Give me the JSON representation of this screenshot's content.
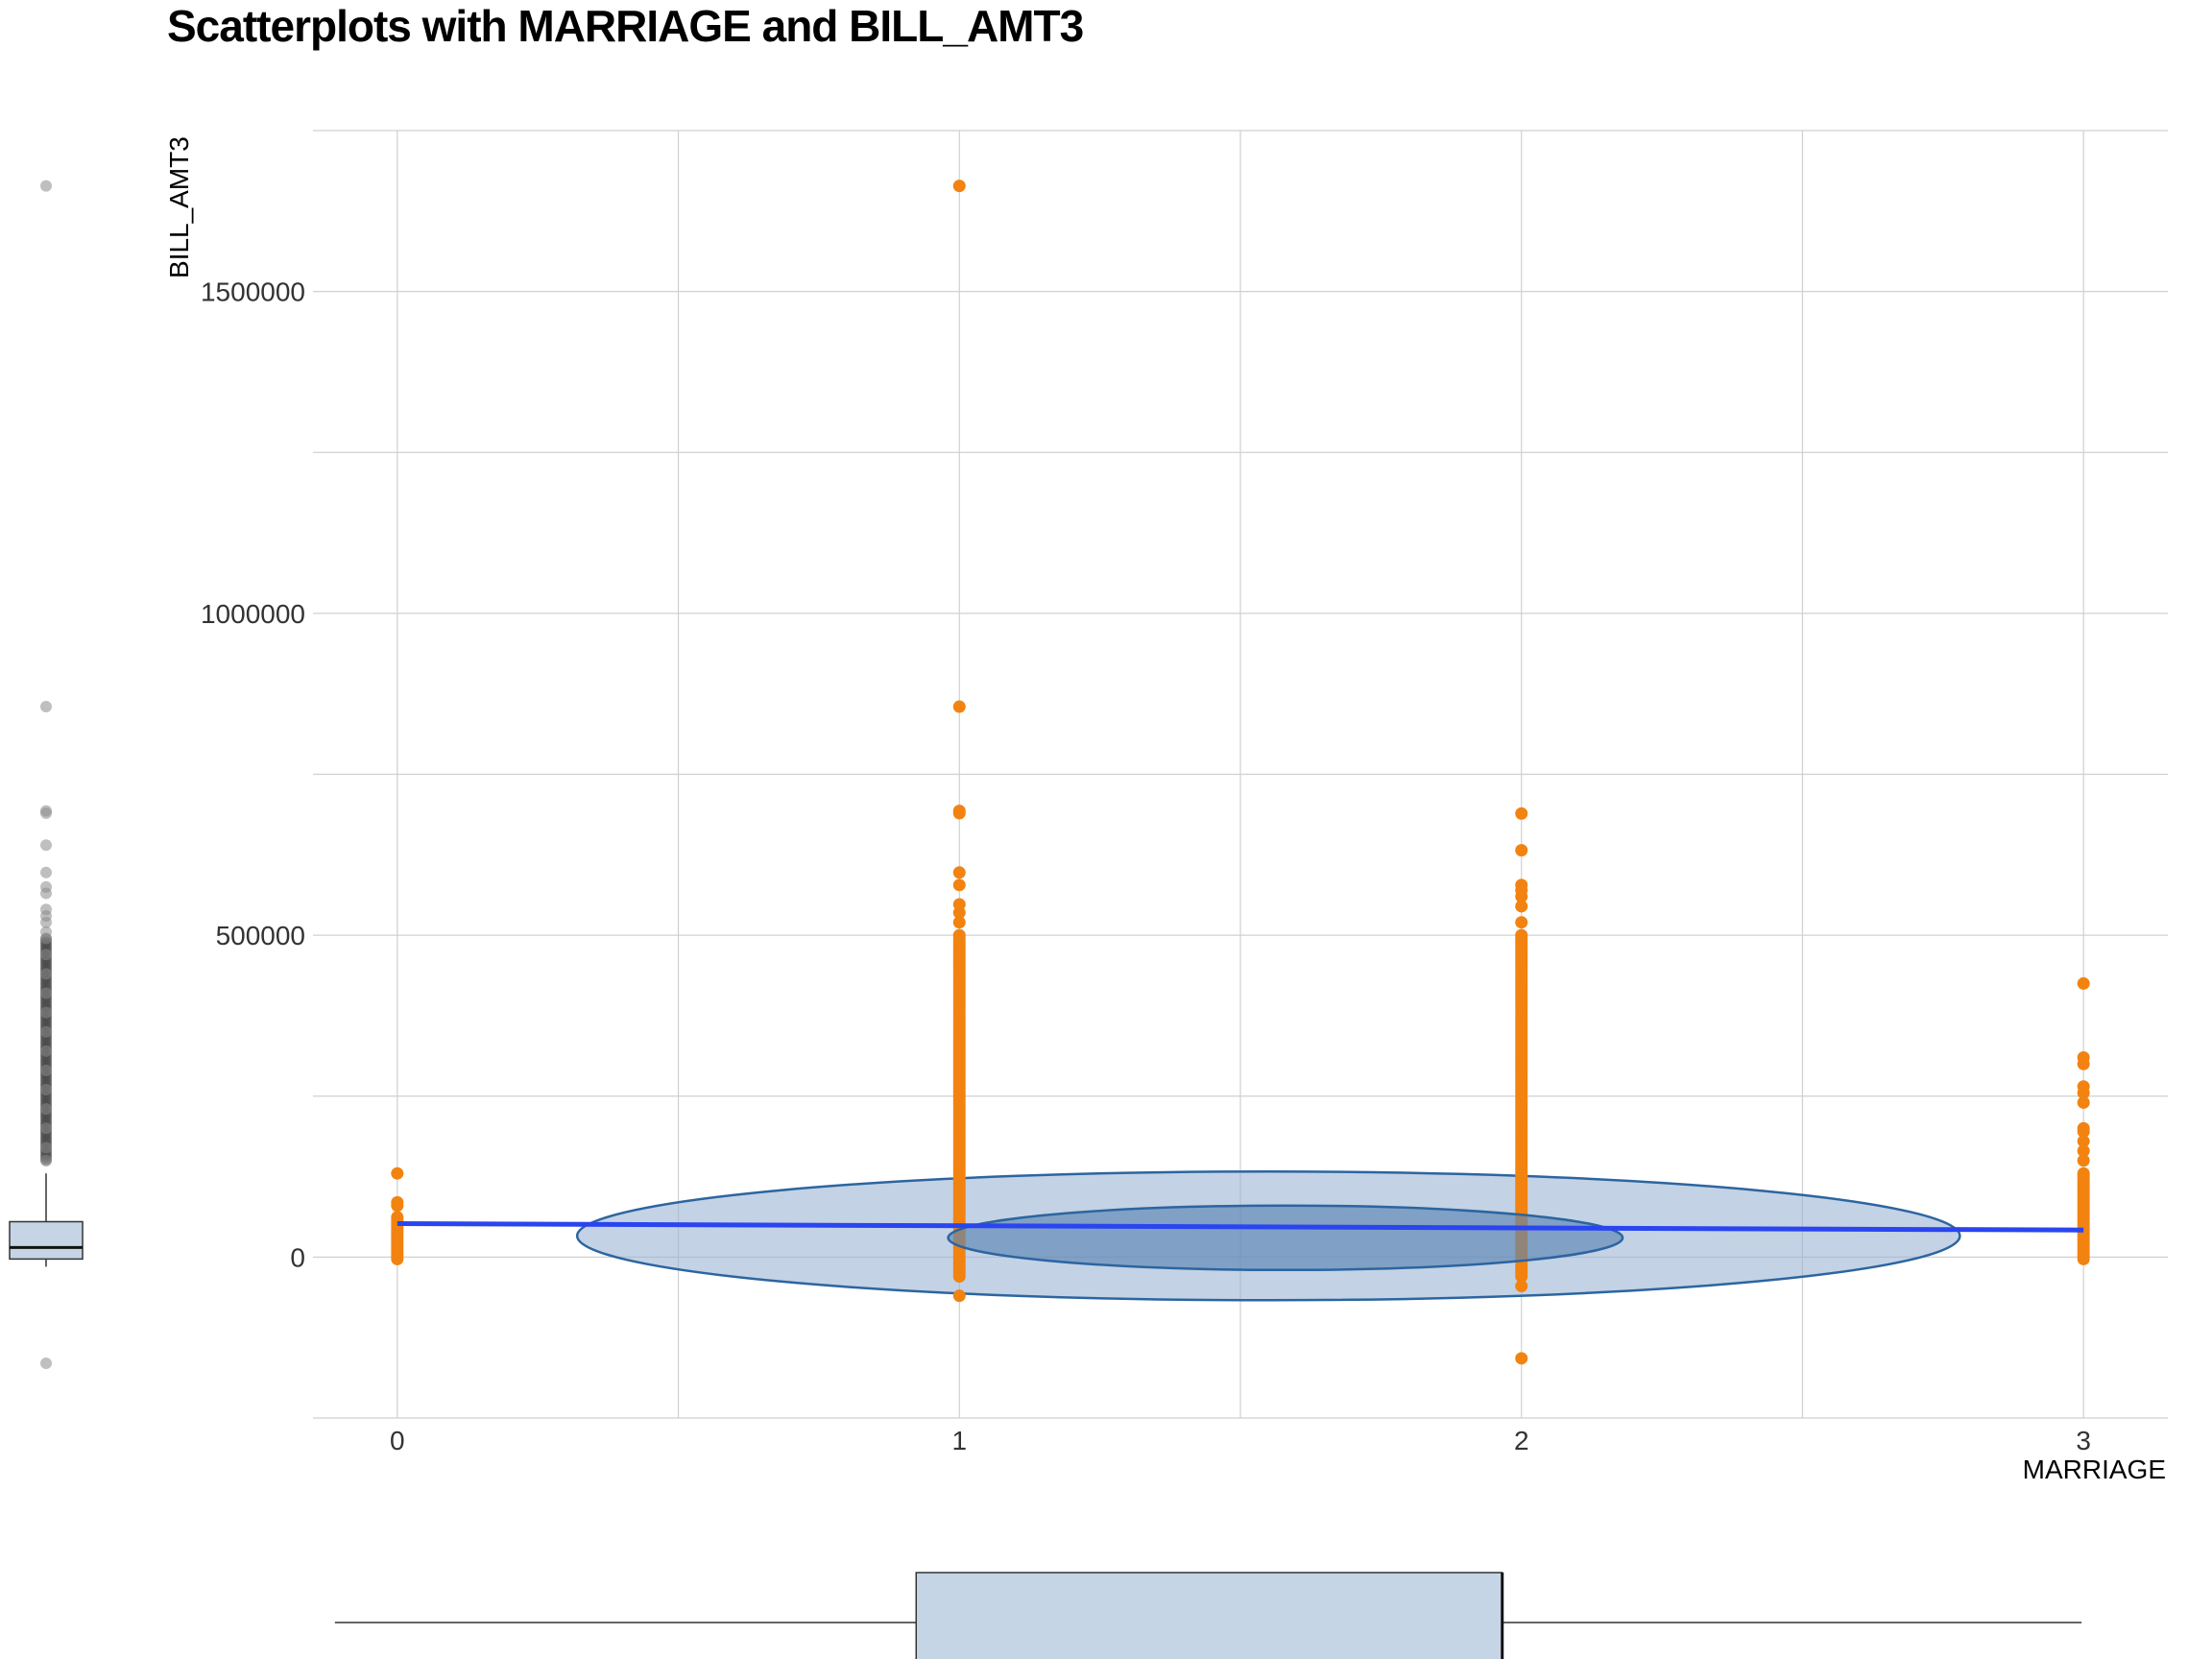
{
  "chart_data": {
    "type": "scatter",
    "title": "Scatterplots with MARRIAGE and BILL_AMT3",
    "xlabel": "MARRIAGE",
    "ylabel": "BILL_AMT3",
    "xlim": [
      -0.15,
      3.15
    ],
    "ylim": [
      -250000,
      1750000
    ],
    "x_ticks": [
      0,
      1,
      2,
      3
    ],
    "y_ticks": [
      0,
      500000,
      1000000,
      1500000
    ],
    "grid": true,
    "colors": {
      "points": "#f28310",
      "regression_line": "#2a45f0",
      "ellipse_fill": "#9bb4d3",
      "ellipse_stroke": "#2c65a0",
      "marginal_box": "#c5d5e6",
      "marginal_outlier": "#8a8a8a",
      "grid": "#d0d0d0"
    },
    "series": [
      {
        "x": 0,
        "dense_range": [
          -3000,
          62000
        ],
        "points": [
          130000,
          85000,
          80000
        ]
      },
      {
        "x": 1,
        "dense_range": [
          -30000,
          500000
        ],
        "points": [
          1664089,
          855086,
          693131,
          689643,
          597415,
          578000,
          548000,
          535000,
          520000,
          -60000
        ]
      },
      {
        "x": 2,
        "dense_range": [
          -30000,
          500000
        ],
        "points": [
          689000,
          632000,
          578000,
          570000,
          560000,
          545000,
          520000,
          -45000,
          -157264
        ]
      },
      {
        "x": 3,
        "dense_range": [
          -3000,
          130000
        ],
        "points": [
          425000,
          310000,
          300000,
          265000,
          255000,
          240000,
          200000,
          195000,
          180000,
          165000,
          150000
        ]
      }
    ],
    "regression_line": {
      "x": [
        0,
        3
      ],
      "y": [
        52000,
        42000
      ]
    },
    "ellipses": [
      {
        "cx": 1.55,
        "cy": 33000,
        "rx": 1.23,
        "ry": 100000
      },
      {
        "cx": 1.58,
        "cy": 30000,
        "rx": 0.6,
        "ry": 50000
      }
    ],
    "marginal_y_box": {
      "min": -15000,
      "q1": -3000,
      "median": 15000,
      "q3": 55000,
      "max": 130000,
      "outliers": [
        1664089,
        855086,
        689643,
        693131,
        640000,
        597415,
        575000,
        565000,
        540000,
        530000,
        520000,
        505000,
        495000,
        470000,
        440000,
        410000,
        380000,
        350000,
        320000,
        290000,
        260000,
        230000,
        200000,
        170000,
        150000,
        -165000
      ]
    },
    "marginal_x_box": {
      "min": 0,
      "q1": 1,
      "median": 2,
      "q3": 2,
      "max": 3
    }
  }
}
